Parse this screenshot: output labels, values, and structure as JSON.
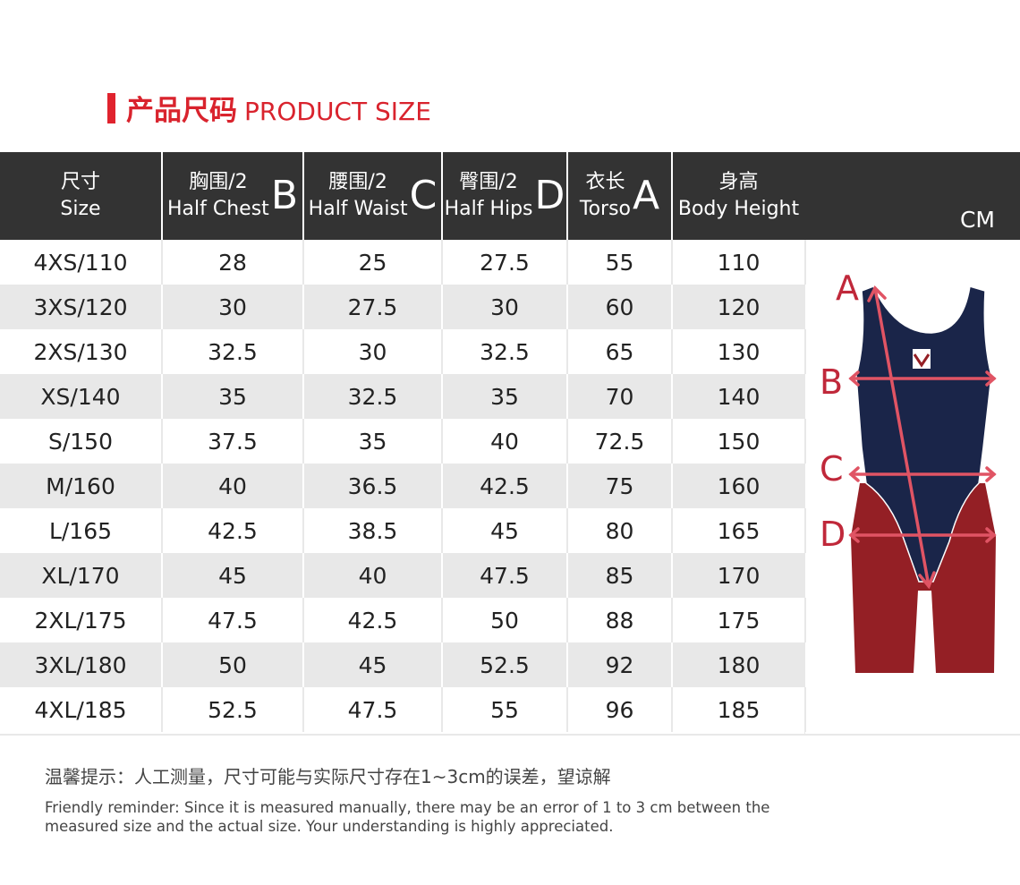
{
  "title": {
    "cn": "产品尺码",
    "en": "PRODUCT SIZE"
  },
  "unit": "CM",
  "columns": [
    {
      "cn": "尺寸",
      "en": "Size",
      "letter": ""
    },
    {
      "cn": "胸围/2",
      "en": "Half Chest",
      "letter": "B"
    },
    {
      "cn": "腰围/2",
      "en": "Half Waist",
      "letter": "C"
    },
    {
      "cn": "臀围/2",
      "en": "Half Hips",
      "letter": "D"
    },
    {
      "cn": "衣长",
      "en": "Torso",
      "letter": "A"
    },
    {
      "cn": "身高",
      "en": "Body Height",
      "letter": ""
    }
  ],
  "rows": [
    [
      "4XS/110",
      "28",
      "25",
      "27.5",
      "55",
      "110"
    ],
    [
      "3XS/120",
      "30",
      "27.5",
      "30",
      "60",
      "120"
    ],
    [
      "2XS/130",
      "32.5",
      "30",
      "32.5",
      "65",
      "130"
    ],
    [
      "XS/140",
      "35",
      "32.5",
      "35",
      "70",
      "140"
    ],
    [
      "S/150",
      "37.5",
      "35",
      "40",
      "72.5",
      "150"
    ],
    [
      "M/160",
      "40",
      "36.5",
      "42.5",
      "75",
      "160"
    ],
    [
      "L/165",
      "42.5",
      "38.5",
      "45",
      "80",
      "165"
    ],
    [
      "XL/170",
      "45",
      "40",
      "47.5",
      "85",
      "170"
    ],
    [
      "2XL/175",
      "47.5",
      "42.5",
      "50",
      "88",
      "175"
    ],
    [
      "3XL/180",
      "50",
      "45",
      "52.5",
      "92",
      "180"
    ],
    [
      "4XL/185",
      "52.5",
      "47.5",
      "55",
      "96",
      "185"
    ]
  ],
  "figure": {
    "labels": [
      "A",
      "B",
      "C",
      "D"
    ],
    "colors": {
      "navy": "#1a2549",
      "red": "#941f25",
      "arrow": "#e05464",
      "label": "#c0283a"
    }
  },
  "note": {
    "cn": "温馨提示：人工测量，尺寸可能与实际尺寸存在1~3cm的误差，望谅解",
    "en": "Friendly reminder: Since it is measured manually, there may be an error of 1 to 3 cm between the measured size and the actual size. Your understanding is highly appreciated."
  }
}
